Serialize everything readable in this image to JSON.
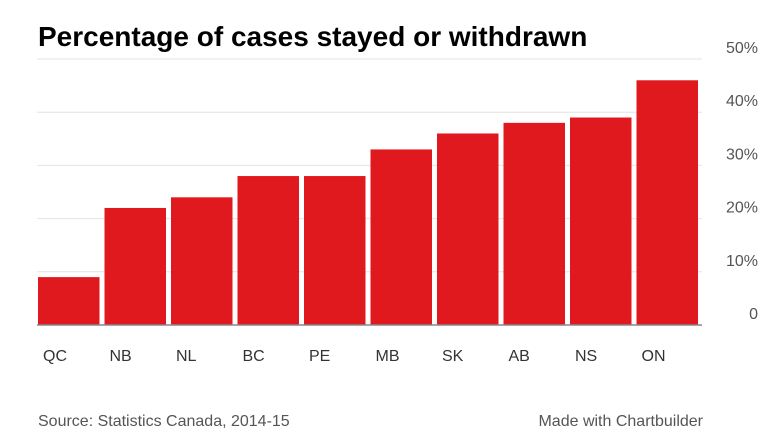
{
  "chart_data": {
    "type": "bar",
    "title": "Percentage of cases stayed or withdrawn",
    "categories": [
      "QC",
      "NB",
      "NL",
      "BC",
      "PE",
      "MB",
      "SK",
      "AB",
      "NS",
      "ON"
    ],
    "values": [
      9,
      22,
      24,
      28,
      28,
      33,
      36,
      38,
      39,
      46
    ],
    "ylim": [
      0,
      50
    ],
    "yticks": [
      0,
      10,
      20,
      30,
      40,
      50
    ],
    "ytick_labels": [
      "0",
      "10%",
      "20%",
      "30%",
      "40%",
      "50%"
    ],
    "y_axis_position": "right",
    "grid": true,
    "bar_color": "#e0191f",
    "source": "Source: Statistics Canada, 2014-15",
    "credit": "Made with Chartbuilder"
  }
}
